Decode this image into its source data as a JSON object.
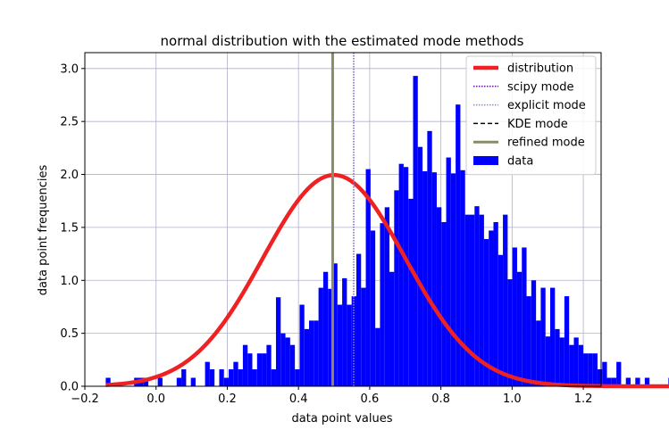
{
  "chart_data": {
    "type": "histogram",
    "title": "normal distribution with the estimated mode methods",
    "xlabel": "data point values",
    "ylabel": "data point frequencies",
    "xlim": [
      -0.2,
      1.25
    ],
    "ylim": [
      0.0,
      3.15
    ],
    "xticks": [
      -0.2,
      0.0,
      0.2,
      0.4,
      0.6,
      0.8,
      1.0,
      1.2
    ],
    "xtick_labels": [
      "−0.2",
      "0.0",
      "0.2",
      "0.4",
      "0.6",
      "0.8",
      "1.0",
      "1.2"
    ],
    "yticks": [
      0.0,
      0.5,
      1.0,
      1.5,
      2.0,
      2.5,
      3.0
    ],
    "ytick_labels": [
      "0.0",
      "0.5",
      "1.0",
      "1.5",
      "2.0",
      "2.5",
      "3.0"
    ],
    "grid": true,
    "legend_position": "top-right",
    "colors": {
      "bars": "#0000ff",
      "distribution": "#ee2222",
      "scipy": "#6a0dad",
      "explicit": "#8a8ad8",
      "kde": "#000000",
      "refined": "#8b8b66",
      "grid": "#b0b0c8"
    },
    "histogram": {
      "bin_start": -0.1413,
      "bin_width": 0.01328,
      "values": [
        0.08,
        0.0,
        0.0,
        0.0,
        0.0,
        0.0,
        0.08,
        0.08,
        0.08,
        0.0,
        0.0,
        0.08,
        0.0,
        0.0,
        0.0,
        0.08,
        0.16,
        0.0,
        0.08,
        0.0,
        0.0,
        0.23,
        0.16,
        0.0,
        0.16,
        0.08,
        0.16,
        0.23,
        0.16,
        0.39,
        0.31,
        0.16,
        0.31,
        0.31,
        0.39,
        0.16,
        0.84,
        0.5,
        0.46,
        0.39,
        0.16,
        0.77,
        0.54,
        0.62,
        0.62,
        0.93,
        1.08,
        0.92,
        1.16,
        0.77,
        1.02,
        0.77,
        0.85,
        1.25,
        0.93,
        2.05,
        1.47,
        0.55,
        1.54,
        1.69,
        1.08,
        1.85,
        2.1,
        2.07,
        1.77,
        2.93,
        2.26,
        2.03,
        2.41,
        2.02,
        1.69,
        1.55,
        2.16,
        2.01,
        2.66,
        2.04,
        1.62,
        1.62,
        1.7,
        1.62,
        1.39,
        1.47,
        1.55,
        1.24,
        1.62,
        1.01,
        1.31,
        1.08,
        1.31,
        0.85,
        1.0,
        0.62,
        0.93,
        0.47,
        0.93,
        0.54,
        0.46,
        0.85,
        0.39,
        0.46,
        0.39,
        0.31,
        0.31,
        0.31,
        0.16,
        0.23,
        0.08,
        0.08,
        0.23,
        0.0,
        0.08,
        0.0,
        0.08,
        0.0,
        0.08,
        0.0,
        0.0,
        0.0,
        0.0,
        0.08,
        0.0,
        0.0,
        0.0,
        0.0,
        0.0,
        0.0,
        0.0,
        0.08
      ]
    },
    "distribution": {
      "mean": 0.5,
      "std": 0.2
    },
    "vlines": [
      {
        "name": "scipy mode",
        "x": 0.555,
        "style": "dotted",
        "color_key": "scipy"
      },
      {
        "name": "explicit mode",
        "x": 0.555,
        "style": "dotted",
        "color_key": "explicit"
      },
      {
        "name": "KDE mode",
        "x": 0.496,
        "style": "dashed",
        "color_key": "kde"
      },
      {
        "name": "refined mode",
        "x": 0.496,
        "style": "solid",
        "color_key": "refined"
      }
    ],
    "legend": [
      {
        "label": "distribution",
        "kind": "line-thick",
        "color_key": "distribution"
      },
      {
        "label": "scipy mode",
        "kind": "line-dotted",
        "color_key": "scipy"
      },
      {
        "label": "explicit mode",
        "kind": "line-dotted",
        "color_key": "explicit"
      },
      {
        "label": "KDE mode",
        "kind": "line-dashed",
        "color_key": "kde"
      },
      {
        "label": "refined mode",
        "kind": "line",
        "color_key": "refined"
      },
      {
        "label": "data",
        "kind": "patch",
        "color_key": "bars"
      }
    ]
  }
}
